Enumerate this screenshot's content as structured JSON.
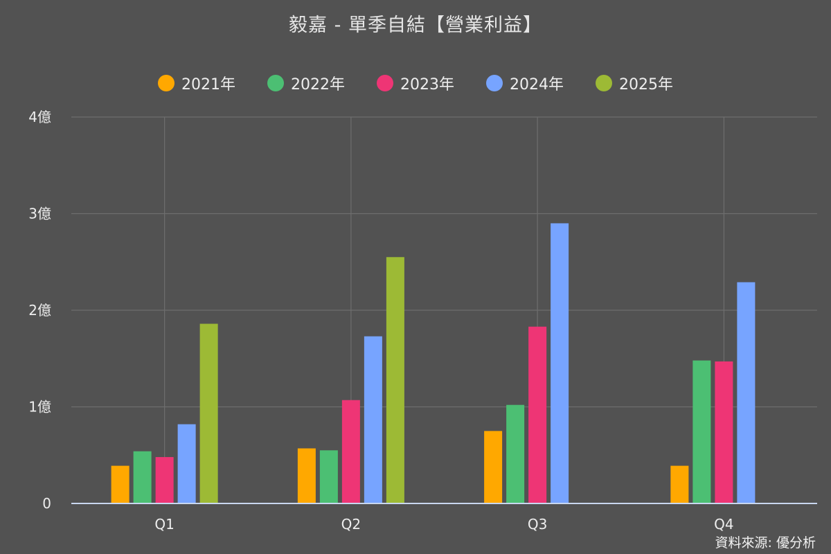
{
  "title": "毅嘉 - 單季自結【營業利益】",
  "source": "資料來源: 優分析",
  "chart_data": {
    "type": "bar",
    "categories": [
      "Q1",
      "Q2",
      "Q3",
      "Q4"
    ],
    "series": [
      {
        "name": "2021年",
        "color": "#FFA800",
        "values": [
          0.39,
          0.57,
          0.75,
          0.39
        ]
      },
      {
        "name": "2022年",
        "color": "#4CBF73",
        "values": [
          0.54,
          0.55,
          1.02,
          1.48
        ]
      },
      {
        "name": "2023年",
        "color": "#EE3575",
        "values": [
          0.48,
          1.07,
          1.83,
          1.47
        ]
      },
      {
        "name": "2024年",
        "color": "#77A4FF",
        "values": [
          0.82,
          1.73,
          2.9,
          2.29
        ]
      },
      {
        "name": "2025年",
        "color": "#9DBA35",
        "values": [
          1.86,
          2.55,
          null,
          null
        ]
      }
    ],
    "y_ticks": [
      0,
      1,
      2,
      3,
      4
    ],
    "y_tick_labels": [
      "0",
      "1億",
      "2億",
      "3億",
      "4億"
    ],
    "ylim": [
      0,
      4
    ],
    "legend_position": "top-center",
    "grid": true
  }
}
